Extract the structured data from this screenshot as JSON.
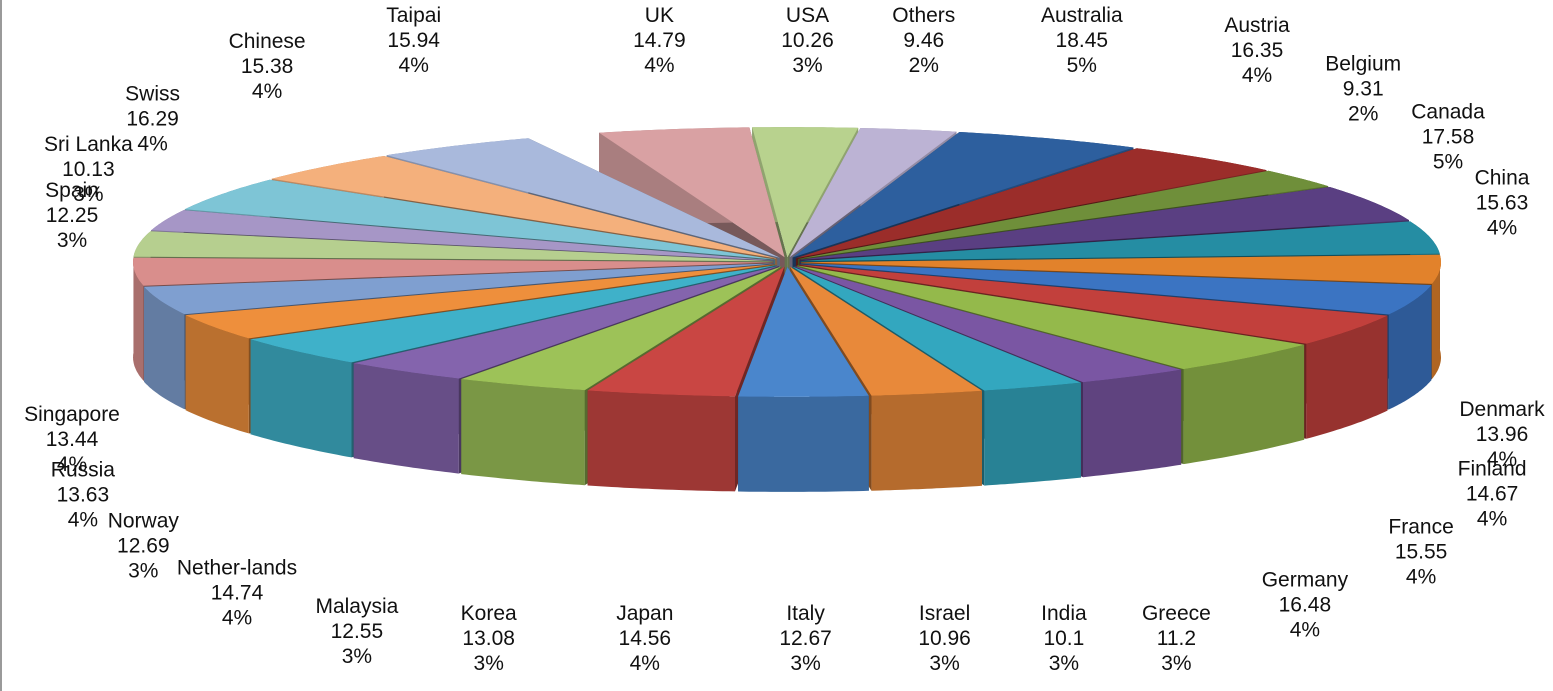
{
  "chart_data": {
    "type": "pie",
    "title": "",
    "slices": [
      {
        "label": "UK",
        "value": 14.79,
        "percent": "4%",
        "color": "#d9a1a3"
      },
      {
        "label": "USA",
        "value": 10.26,
        "percent": "3%",
        "color": "#b8d28e"
      },
      {
        "label": "Others",
        "value": 9.46,
        "percent": "2%",
        "color": "#bcb3d4"
      },
      {
        "label": "Australia",
        "value": 18.45,
        "percent": "5%",
        "color": "#2d5f9e"
      },
      {
        "label": "Austria",
        "value": 16.35,
        "percent": "4%",
        "color": "#9b2d2a"
      },
      {
        "label": "Belgium",
        "value": 9.31,
        "percent": "2%",
        "color": "#6f8f3a"
      },
      {
        "label": "Canada",
        "value": 17.58,
        "percent": "5%",
        "color": "#5a3f82"
      },
      {
        "label": "China",
        "value": 15.63,
        "percent": "4%",
        "color": "#258da3"
      },
      {
        "label": "Denmark",
        "value": 13.96,
        "percent": "4%",
        "color": "#e2822b"
      },
      {
        "label": "Finland",
        "value": 14.67,
        "percent": "4%",
        "color": "#3b74c2"
      },
      {
        "label": "France",
        "value": 15.55,
        "percent": "4%",
        "color": "#c2403c"
      },
      {
        "label": "Germany",
        "value": 16.48,
        "percent": "4%",
        "color": "#94b94b"
      },
      {
        "label": "Greece",
        "value": 11.2,
        "percent": "3%",
        "color": "#7a56a3"
      },
      {
        "label": "India",
        "value": 10.1,
        "percent": "3%",
        "color": "#33a7bf"
      },
      {
        "label": "Israel",
        "value": 10.96,
        "percent": "3%",
        "color": "#e8893a"
      },
      {
        "label": "Italy",
        "value": 12.67,
        "percent": "3%",
        "color": "#4a86cc"
      },
      {
        "label": "Japan",
        "value": 14.56,
        "percent": "4%",
        "color": "#c94643"
      },
      {
        "label": "Korea",
        "value": 13.08,
        "percent": "3%",
        "color": "#9dc258"
      },
      {
        "label": "Malaysia",
        "value": 12.55,
        "percent": "3%",
        "color": "#8464ad"
      },
      {
        "label": "Nether-lands",
        "value": 14.74,
        "percent": "4%",
        "color": "#3fb1c9"
      },
      {
        "label": "Norway",
        "value": 12.69,
        "percent": "3%",
        "color": "#ee8f3c"
      },
      {
        "label": "Russia",
        "value": 13.63,
        "percent": "4%",
        "color": "#7f9fd0"
      },
      {
        "label": "Singapore",
        "value": 13.44,
        "percent": "4%",
        "color": "#d98e8c"
      },
      {
        "label": "Spain",
        "value": 12.25,
        "percent": "3%",
        "color": "#b6cf8f"
      },
      {
        "label": "Sri Lanka",
        "value": 10.13,
        "percent": "3%",
        "color": "#a696c6"
      },
      {
        "label": "Swiss",
        "value": 16.29,
        "percent": "4%",
        "color": "#7ec5d6"
      },
      {
        "label": "Chinese",
        "value": 15.38,
        "percent": "4%",
        "color": "#f4b07c"
      },
      {
        "label": "Taipai",
        "value": 15.94,
        "percent": "4%",
        "color": "#a9b9dc"
      }
    ],
    "legend": "none",
    "style": "3d exploded pie with callout labels"
  }
}
